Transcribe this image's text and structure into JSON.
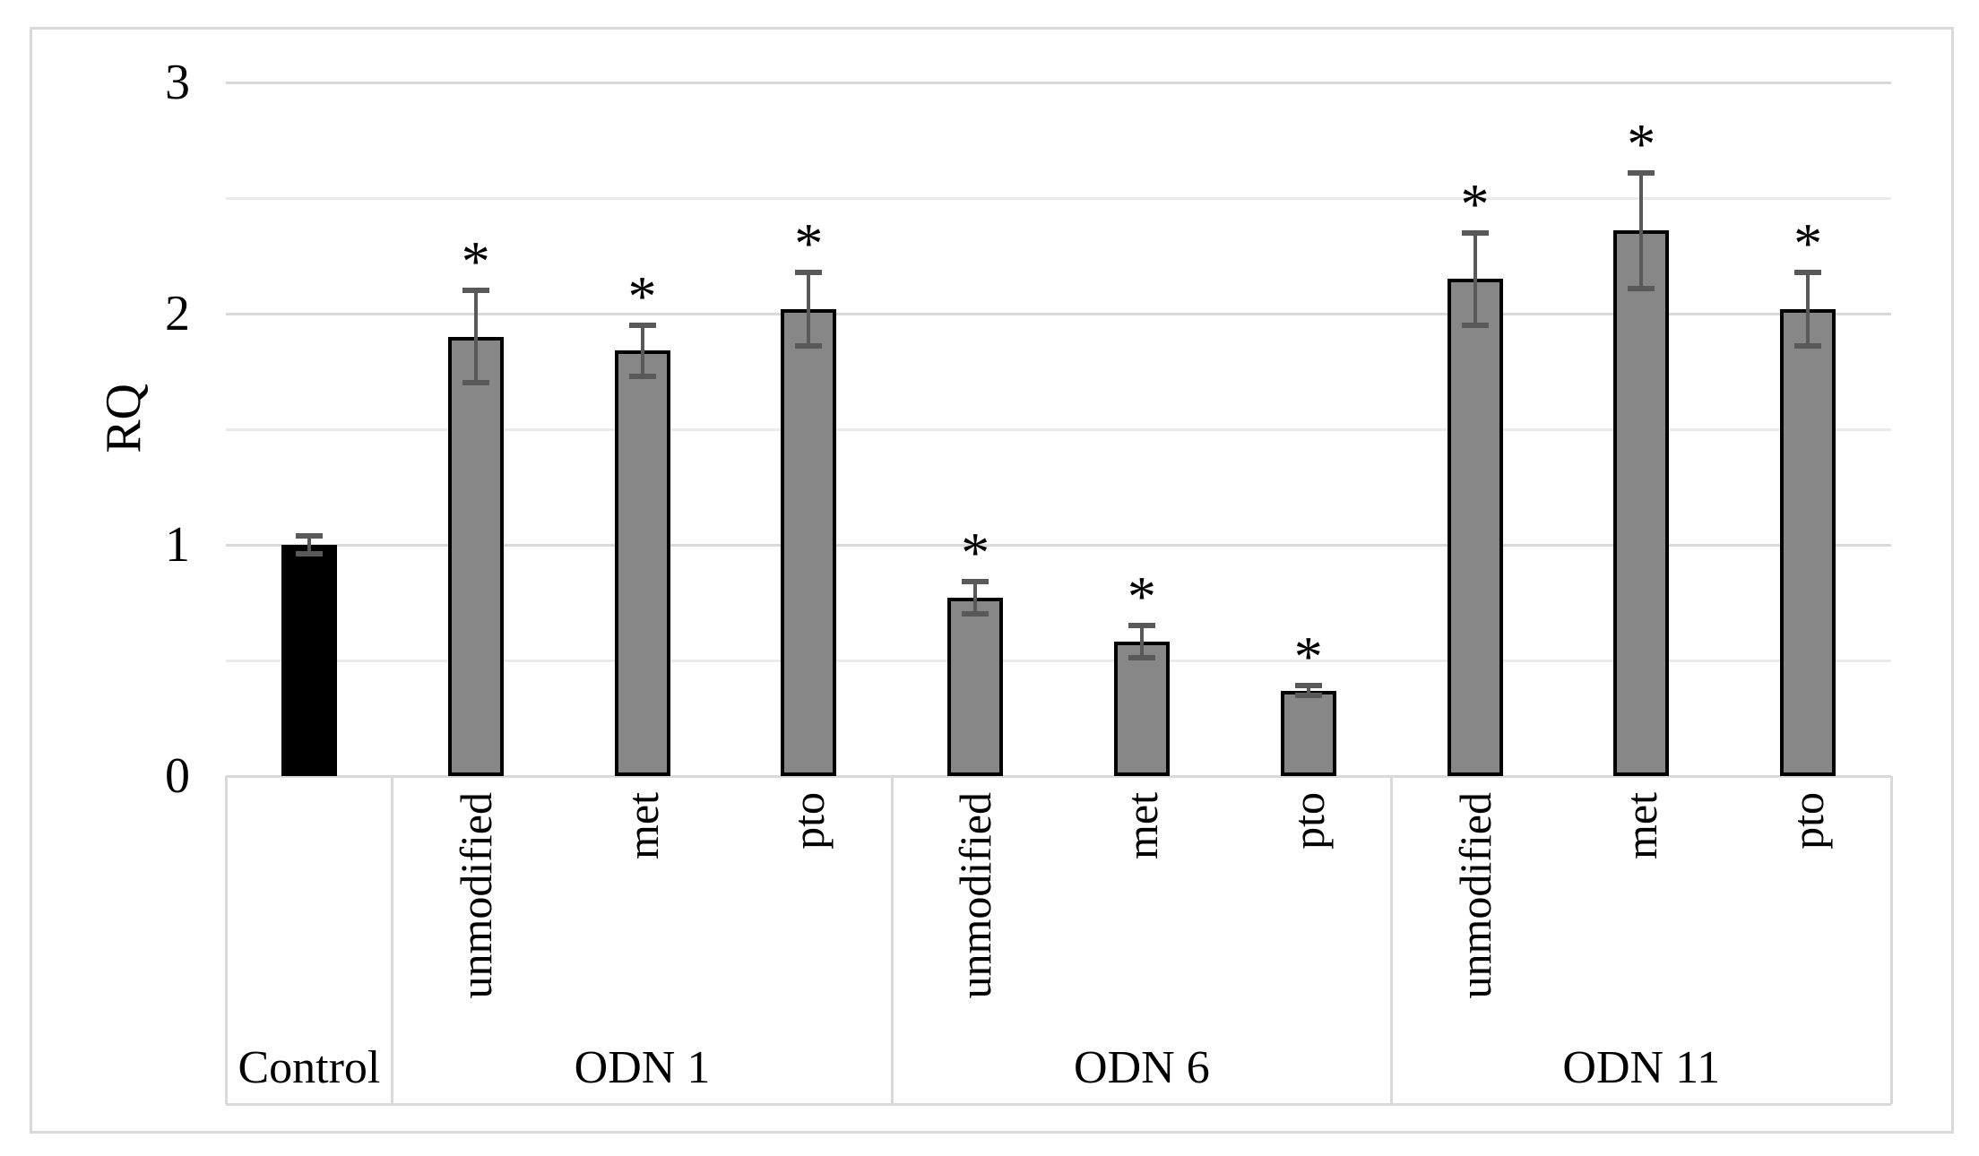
{
  "figure": {
    "background": "#ffffff",
    "border_color": "#d9d9d9"
  },
  "chart_data": {
    "type": "bar",
    "title": "",
    "ylabel": "RQ",
    "xlabel": "",
    "ylim": [
      0,
      3
    ],
    "grid": {
      "major": [
        1,
        2,
        3
      ],
      "minor": [
        0.5,
        1.5,
        2.5
      ]
    },
    "legend_position": "none",
    "sig_marker": "*",
    "yticks": [
      {
        "label": "3",
        "value": 3
      },
      {
        "label": "2",
        "value": 2
      },
      {
        "label": "1",
        "value": 1
      },
      {
        "label": "0",
        "value": 0
      }
    ],
    "groups": [
      {
        "label": "Control",
        "bars": [
          {
            "label": "",
            "value": 1.0,
            "error": 0.04,
            "sig": false,
            "fill": "#000000"
          }
        ]
      },
      {
        "label": "ODN 1",
        "bars": [
          {
            "label": "unmodified",
            "value": 1.9,
            "error": 0.2,
            "sig": true,
            "fill": "#878787"
          },
          {
            "label": "met",
            "value": 1.84,
            "error": 0.11,
            "sig": true,
            "fill": "#878787"
          },
          {
            "label": "pto",
            "value": 2.02,
            "error": 0.16,
            "sig": true,
            "fill": "#878787"
          }
        ]
      },
      {
        "label": "ODN 6",
        "bars": [
          {
            "label": "unmodified",
            "value": 0.77,
            "error": 0.07,
            "sig": true,
            "fill": "#878787"
          },
          {
            "label": "met",
            "value": 0.58,
            "error": 0.07,
            "sig": true,
            "fill": "#878787"
          },
          {
            "label": "pto",
            "value": 0.37,
            "error": 0.02,
            "sig": true,
            "fill": "#878787"
          }
        ]
      },
      {
        "label": "ODN 11",
        "bars": [
          {
            "label": "unmodified",
            "value": 2.15,
            "error": 0.2,
            "sig": true,
            "fill": "#878787"
          },
          {
            "label": "met",
            "value": 2.36,
            "error": 0.25,
            "sig": true,
            "fill": "#878787"
          },
          {
            "label": "pto",
            "value": 2.02,
            "error": 0.16,
            "sig": true,
            "fill": "#878787"
          }
        ]
      }
    ],
    "colors": {
      "bar_fill": "#878787",
      "control_fill": "#000000",
      "bar_border": "#000000",
      "error_bar": "#595959",
      "grid_major": "#d9d9d9",
      "grid_minor": "#ebebeb",
      "axis_border": "#d9d9d9",
      "text": "#000000"
    }
  }
}
